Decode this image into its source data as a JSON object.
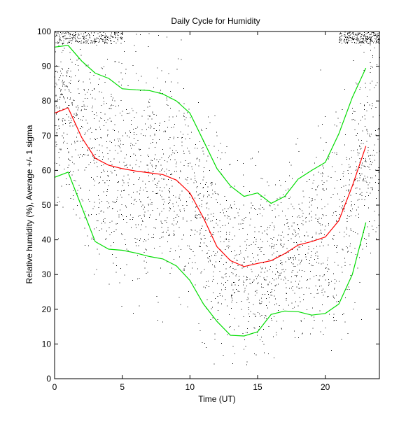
{
  "chart_data": {
    "type": "line",
    "title": "Daily Cycle for Humidity",
    "xlabel": "Time (UT)",
    "ylabel": "Relative humidity (%), Average +/- 1 sigma",
    "xlim": [
      0,
      24
    ],
    "ylim": [
      0,
      100
    ],
    "xticks": [
      0,
      5,
      10,
      15,
      20
    ],
    "yticks": [
      0,
      10,
      20,
      30,
      40,
      50,
      60,
      70,
      80,
      90,
      100
    ],
    "grid": false,
    "x": [
      0,
      1,
      2,
      3,
      4,
      5,
      6,
      7,
      8,
      9,
      10,
      11,
      12,
      13,
      14,
      15,
      16,
      17,
      18,
      19,
      20,
      21,
      22,
      23
    ],
    "series": [
      {
        "role": "average",
        "color": "#ff0000",
        "values": [
          76.5,
          78,
          69.5,
          63.5,
          61.5,
          60.5,
          59.8,
          59.3,
          58.8,
          57.2,
          53.5,
          46.3,
          38.0,
          34.0,
          32.3,
          33.2,
          34.0,
          36.0,
          38.5,
          39.5,
          40.8,
          45.5,
          55.5,
          67.0
        ]
      },
      {
        "role": "average + 1 sigma",
        "color": "#00dd00",
        "values": [
          95.5,
          96.0,
          91.5,
          88.0,
          86.5,
          83.5,
          83.2,
          83.0,
          82.0,
          80.0,
          76.5,
          68.5,
          60.5,
          55.5,
          52.5,
          53.5,
          50.5,
          52.5,
          57.5,
          60.0,
          62.3,
          70.5,
          81.0,
          89.5
        ]
      },
      {
        "role": "average - 1 sigma",
        "color": "#00dd00",
        "values": [
          58.0,
          59.5,
          49.5,
          39.5,
          37.3,
          37.0,
          36.2,
          35.2,
          34.5,
          32.5,
          28.3,
          21.5,
          16.5,
          12.5,
          12.3,
          13.5,
          18.5,
          19.5,
          19.3,
          18.3,
          18.8,
          21.5,
          30.0,
          45.0
        ]
      }
    ],
    "scatter": {
      "color": "#000000",
      "description_of_raw_points_count_hint": 4000
    }
  }
}
